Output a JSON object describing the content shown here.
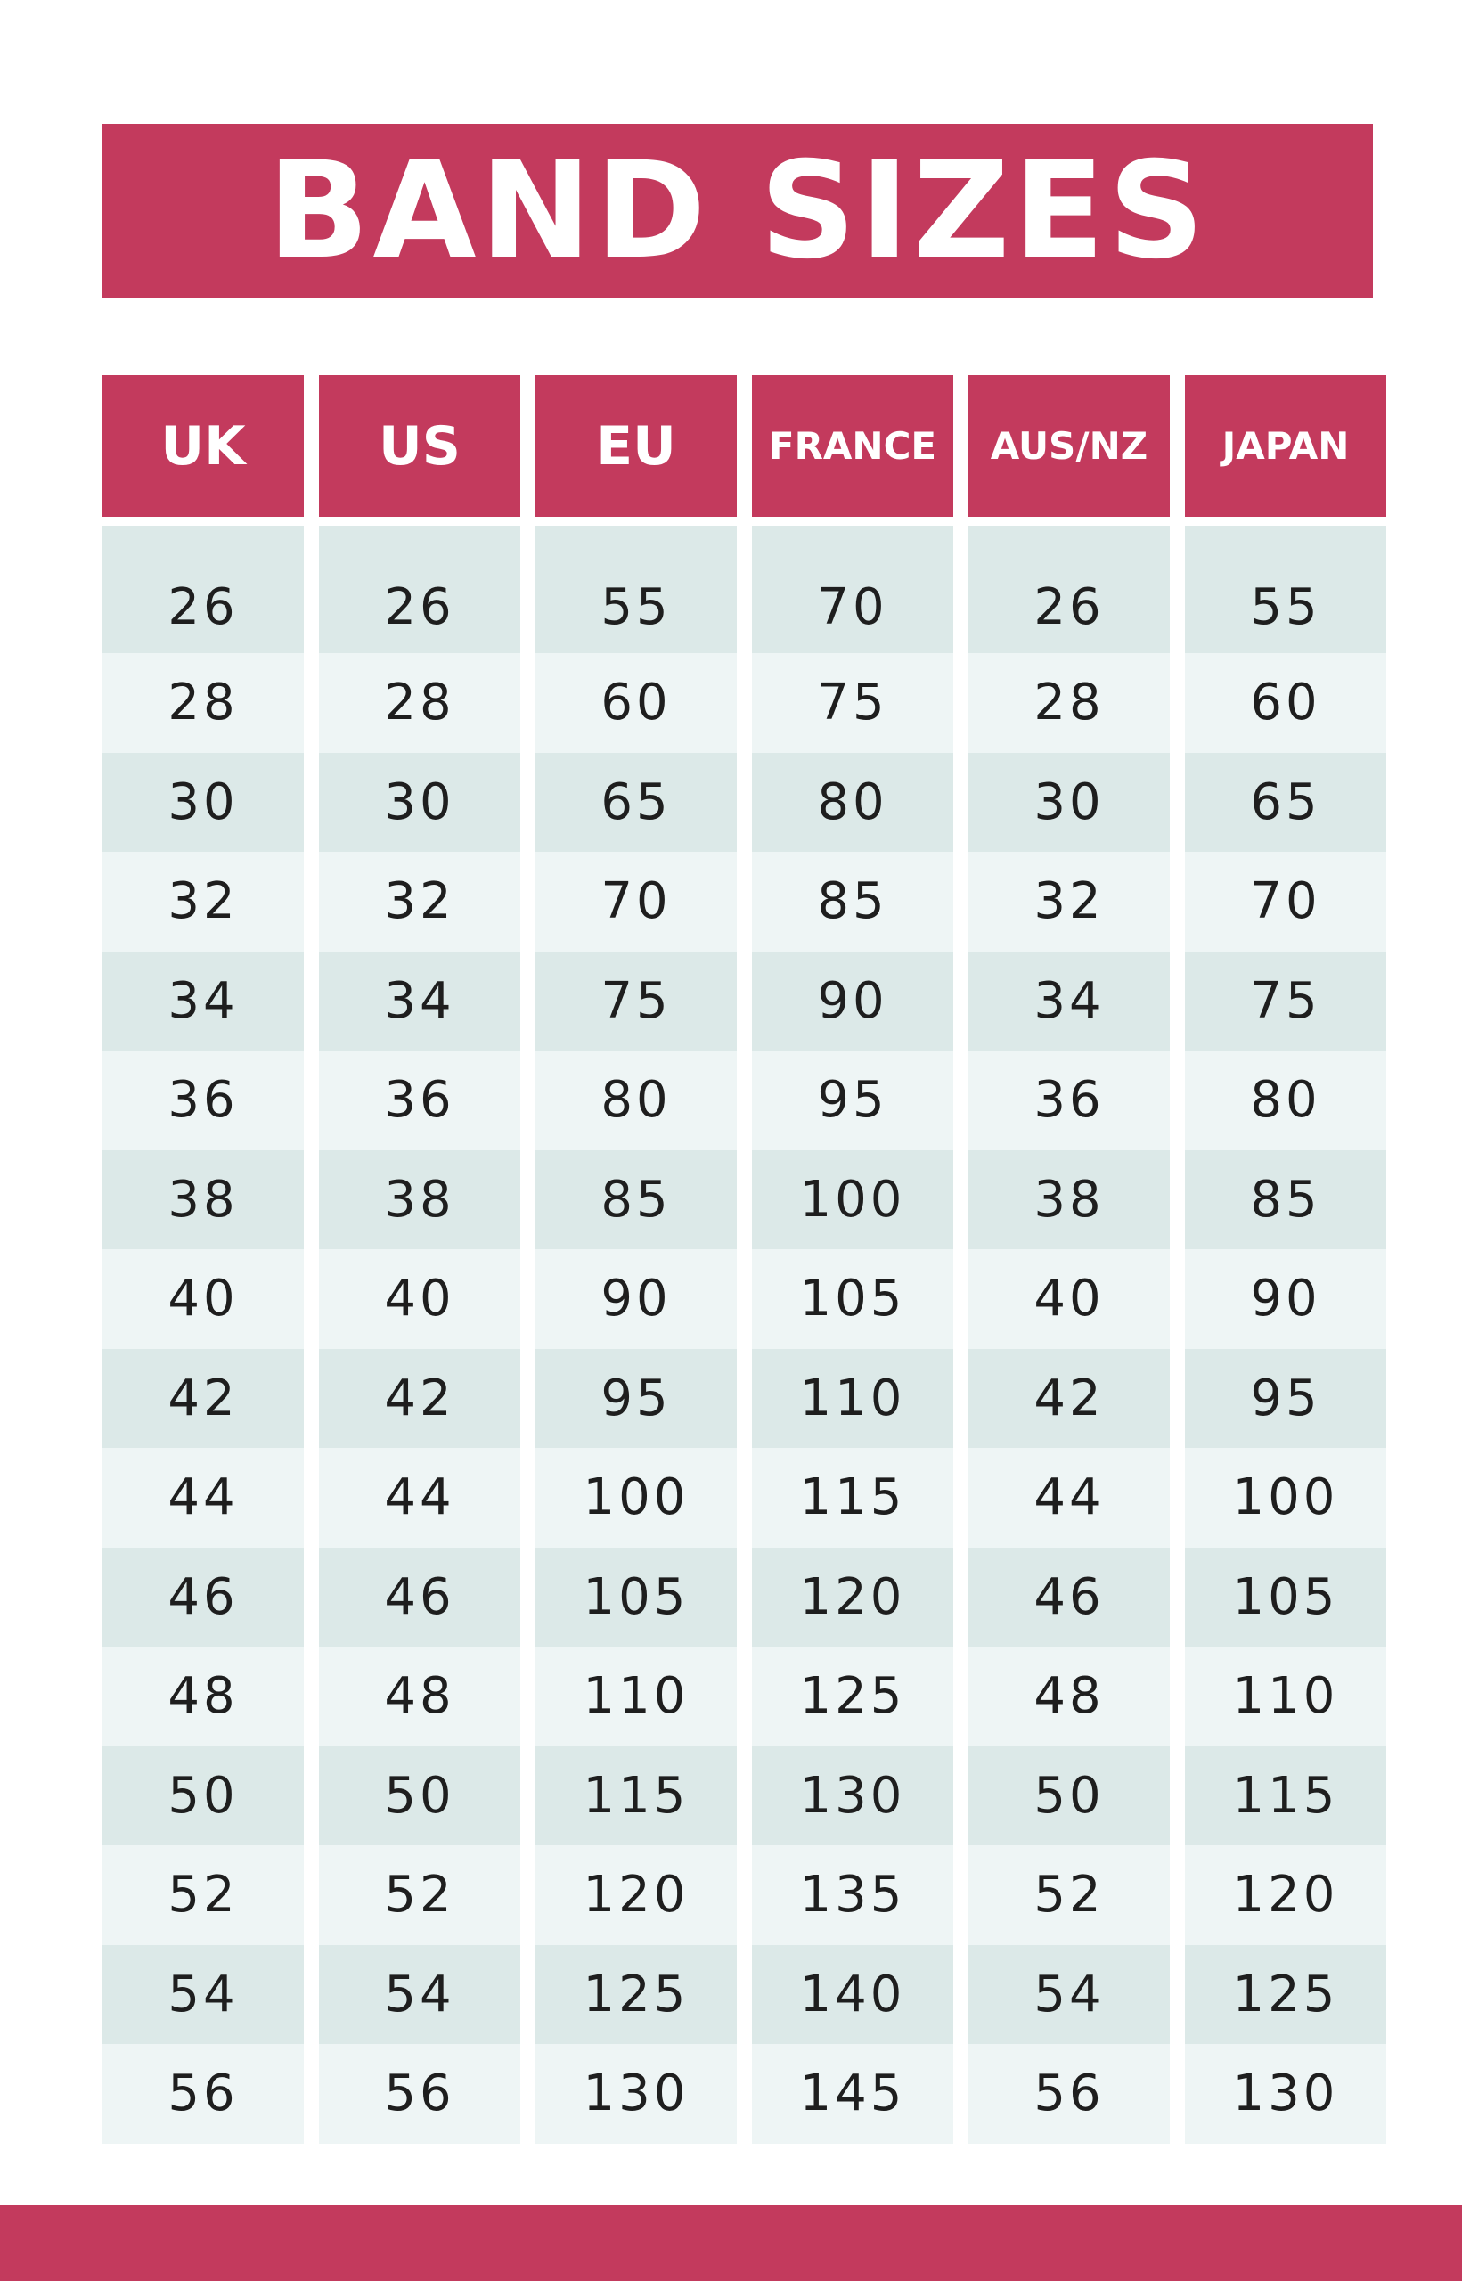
{
  "title": "BAND SIZES",
  "colors": {
    "accent": "#c33a5d",
    "row_dark": "#dce9e8",
    "row_light": "#eef5f5"
  },
  "columns": [
    {
      "header": "UK",
      "values": [
        "26",
        "28",
        "30",
        "32",
        "34",
        "36",
        "38",
        "40",
        "42",
        "44",
        "46",
        "48",
        "50",
        "52",
        "54",
        "56"
      ]
    },
    {
      "header": "US",
      "values": [
        "26",
        "28",
        "30",
        "32",
        "34",
        "36",
        "38",
        "40",
        "42",
        "44",
        "46",
        "48",
        "50",
        "52",
        "54",
        "56"
      ]
    },
    {
      "header": "EU",
      "values": [
        "55",
        "60",
        "65",
        "70",
        "75",
        "80",
        "85",
        "90",
        "95",
        "100",
        "105",
        "110",
        "115",
        "120",
        "125",
        "130"
      ]
    },
    {
      "header": "FRANCE",
      "values": [
        "70",
        "75",
        "80",
        "85",
        "90",
        "95",
        "100",
        "105",
        "110",
        "115",
        "120",
        "125",
        "130",
        "135",
        "140",
        "145"
      ]
    },
    {
      "header": "AUS/NZ",
      "values": [
        "26",
        "28",
        "30",
        "32",
        "34",
        "36",
        "38",
        "40",
        "42",
        "44",
        "46",
        "48",
        "50",
        "52",
        "54",
        "56"
      ]
    },
    {
      "header": "JAPAN",
      "values": [
        "55",
        "60",
        "65",
        "70",
        "75",
        "80",
        "85",
        "90",
        "95",
        "100",
        "105",
        "110",
        "115",
        "120",
        "125",
        "130"
      ]
    }
  ]
}
